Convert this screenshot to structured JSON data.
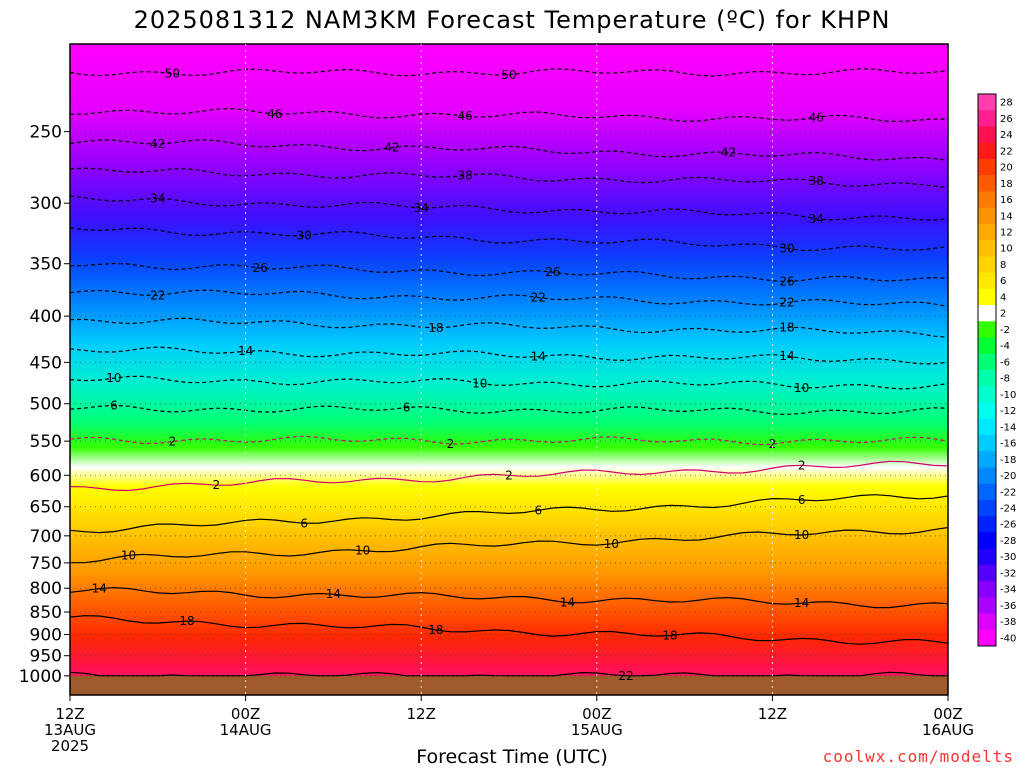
{
  "chart_data": {
    "type": "heatmap",
    "title": "2025081312 NAM3KM Forecast Temperature (ºC) for KHPN",
    "xlabel": "Forecast Time (UTC)",
    "ylabel": "",
    "credit": "coolwx.com/modelts",
    "y_axis": {
      "unit": "hPa",
      "scale": "log",
      "range": [
        200,
        1050
      ],
      "ticks": [
        250,
        300,
        350,
        400,
        450,
        500,
        550,
        600,
        650,
        700,
        750,
        800,
        850,
        900,
        950,
        1000
      ]
    },
    "x_axis": {
      "range_hours": [
        0,
        60
      ],
      "ticks": [
        {
          "hour": 0,
          "lines": [
            "12Z",
            "13AUG",
            "2025"
          ]
        },
        {
          "hour": 12,
          "lines": [
            "00Z",
            "14AUG"
          ]
        },
        {
          "hour": 24,
          "lines": [
            "12Z"
          ]
        },
        {
          "hour": 36,
          "lines": [
            "00Z",
            "15AUG"
          ]
        },
        {
          "hour": 48,
          "lines": [
            "12Z"
          ]
        },
        {
          "hour": 60,
          "lines": [
            "00Z",
            "16AUG"
          ]
        }
      ]
    },
    "colorbar": {
      "levels": [
        28,
        26,
        24,
        22,
        20,
        18,
        16,
        14,
        12,
        10,
        8,
        6,
        4,
        2,
        -2,
        -4,
        -6,
        -8,
        -10,
        -12,
        -14,
        -16,
        -18,
        -20,
        -22,
        -24,
        -26,
        -28,
        -30,
        -32,
        -34,
        -36,
        -38,
        -40
      ],
      "colors": [
        "#ff3fb0",
        "#ff2090",
        "#ff1050",
        "#ff1a1a",
        "#ff3c00",
        "#ff5a00",
        "#ff7a00",
        "#ff9200",
        "#ffa800",
        "#ffbe00",
        "#ffd400",
        "#ffe800",
        "#ffff00",
        "#ffffff",
        "#33ff00",
        "#00ff33",
        "#00ff77",
        "#00ffaa",
        "#00ffcc",
        "#00ffee",
        "#00e8ff",
        "#00ccff",
        "#00aaff",
        "#0088ff",
        "#0066ff",
        "#0044ff",
        "#0022ff",
        "#0000ff",
        "#2200ff",
        "#5500ff",
        "#8800ff",
        "#aa00ff",
        "#dd00ff",
        "#ff00ff"
      ]
    },
    "isotherms": [
      {
        "temp": -50,
        "p_start": 215,
        "p_end": 215,
        "labels_at": [
          7,
          30
        ]
      },
      {
        "temp": -46,
        "p_start": 237,
        "p_end": 243,
        "labels_at": [
          14,
          27,
          51
        ]
      },
      {
        "temp": -42,
        "p_start": 256,
        "p_end": 268,
        "labels_at": [
          6,
          22,
          45
        ]
      },
      {
        "temp": -38,
        "p_start": 276,
        "p_end": 286,
        "labels_at": [
          27,
          51
        ]
      },
      {
        "temp": -34,
        "p_start": 297,
        "p_end": 312,
        "labels_at": [
          6,
          24,
          51
        ]
      },
      {
        "temp": -30,
        "p_start": 320,
        "p_end": 338,
        "labels_at": [
          16,
          49
        ]
      },
      {
        "temp": -26,
        "p_start": 350,
        "p_end": 366,
        "labels_at": [
          13,
          33,
          49
        ]
      },
      {
        "temp": -22,
        "p_start": 375,
        "p_end": 389,
        "labels_at": [
          6,
          32,
          49
        ]
      },
      {
        "temp": -18,
        "p_start": 404,
        "p_end": 418,
        "labels_at": [
          25,
          49
        ]
      },
      {
        "temp": -14,
        "p_start": 436,
        "p_end": 448,
        "labels_at": [
          12,
          32,
          49
        ]
      },
      {
        "temp": -10,
        "p_start": 470,
        "p_end": 478,
        "labels_at": [
          3,
          28,
          50
        ]
      },
      {
        "temp": -6,
        "p_start": 506,
        "p_end": 510,
        "labels_at": [
          3,
          23
        ]
      },
      {
        "temp": -2,
        "p_start": 548,
        "p_end": 550,
        "labels_at": [
          7,
          26,
          48
        ]
      },
      {
        "temp": 2,
        "p_start": 620,
        "p_end": 582,
        "labels_at": [
          10,
          30,
          50
        ]
      },
      {
        "temp": 6,
        "p_start": 690,
        "p_end": 630,
        "labels_at": [
          16,
          32,
          50
        ]
      },
      {
        "temp": 10,
        "p_start": 745,
        "p_end": 687,
        "labels_at": [
          4,
          20,
          37,
          50
        ]
      },
      {
        "temp": 14,
        "p_start": 805,
        "p_end": 835,
        "labels_at": [
          2,
          18,
          34,
          50
        ]
      },
      {
        "temp": 18,
        "p_start": 865,
        "p_end": 920,
        "labels_at": [
          8,
          25,
          41
        ]
      },
      {
        "temp": 22,
        "p_start": 1000,
        "p_end": 1000,
        "labels_at": [
          38
        ]
      }
    ]
  }
}
